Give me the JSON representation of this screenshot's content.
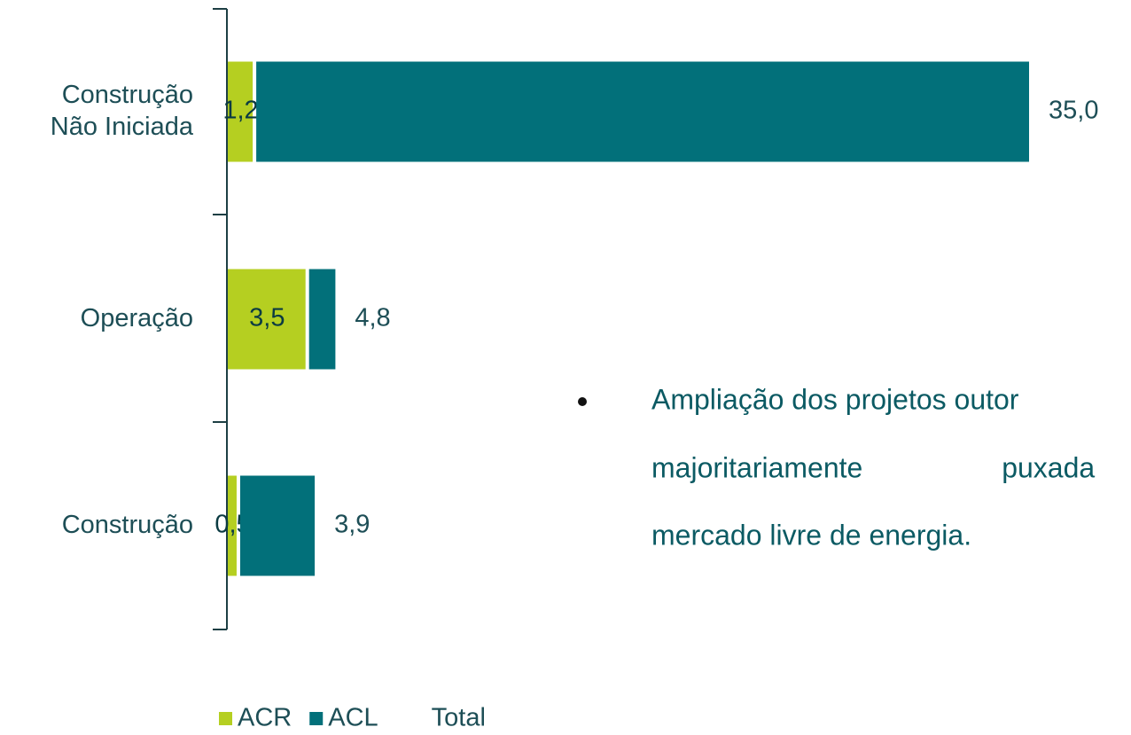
{
  "chart_data": {
    "type": "stacked_barh",
    "categories": [
      "Construção\nNão Iniciada",
      "Operação",
      "Construção"
    ],
    "series": [
      {
        "name": "ACR",
        "color": "#b5cf21",
        "values": [
          1.2,
          3.5,
          0.5
        ],
        "value_labels": [
          "1,2",
          "3,5",
          "0,5"
        ]
      },
      {
        "name": "ACL",
        "color": "#02707a",
        "values": [
          33.8,
          1.3,
          3.4
        ]
      },
      {
        "name": "Total",
        "values": [
          35.0,
          4.8,
          3.9
        ],
        "value_labels": [
          "35,0",
          "4,8",
          "3,9"
        ]
      }
    ],
    "legend": "bottom-left",
    "annotation": [
      "Ampliação dos projetos outor",
      "majoritariamente puxada",
      "mercado livre de energia."
    ]
  }
}
